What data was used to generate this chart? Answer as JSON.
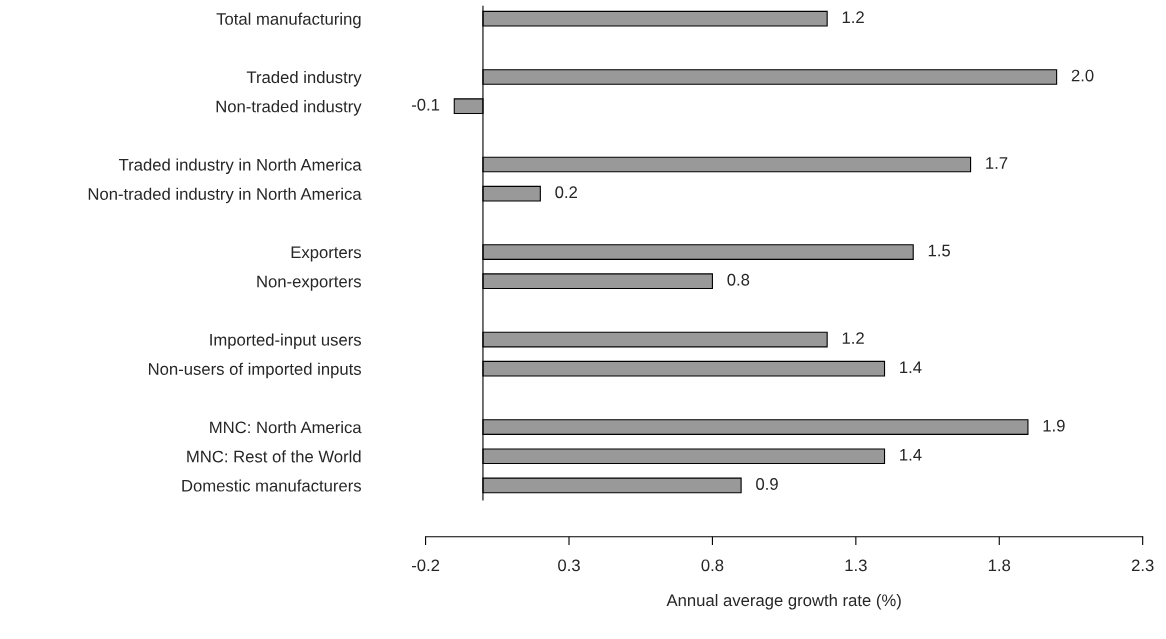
{
  "chart_data": {
    "type": "bar",
    "orientation": "horizontal",
    "xlabel": "Annual average growth rate (%)",
    "categories": [
      "Total manufacturing",
      null,
      "Traded industry",
      "Non-traded industry",
      null,
      "Traded industry in North America",
      "Non-traded industry in North America",
      null,
      "Exporters",
      "Non-exporters",
      null,
      "Imported-input users",
      "Non-users of imported inputs",
      null,
      "MNC: North America",
      "MNC: Rest of the World",
      "Domestic manufacturers"
    ],
    "values": [
      1.2,
      null,
      2.0,
      -0.1,
      null,
      1.7,
      0.2,
      null,
      1.5,
      0.8,
      null,
      1.2,
      1.4,
      null,
      1.9,
      1.4,
      0.9
    ],
    "color": "#999999",
    "xlim": [
      -0.2,
      2.3
    ],
    "xticks": [
      -0.2,
      0.3,
      0.8,
      1.3,
      1.8,
      2.3
    ],
    "value_labels": [
      "1.2",
      null,
      "2.0",
      "-0.1",
      null,
      "1.7",
      "0.2",
      null,
      "1.5",
      "0.8",
      null,
      "1.2",
      "1.4",
      null,
      "1.9",
      "1.4",
      "0.9"
    ],
    "grid": false,
    "legend": false
  }
}
